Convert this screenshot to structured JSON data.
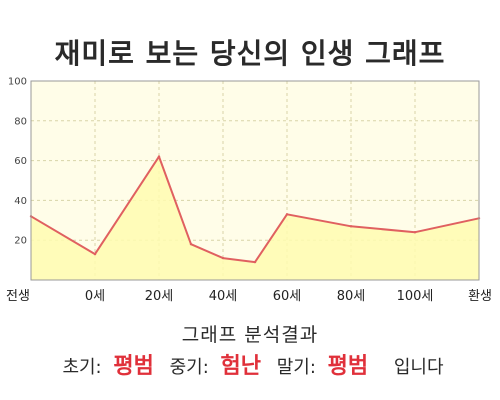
{
  "page": {
    "title": "재미로 보는 당신의 인생 그래프",
    "analysis_title": "그래프 분석결과",
    "results": [
      {
        "label": "초기:",
        "value": "평범"
      },
      {
        "label": "중기:",
        "value": "험난"
      },
      {
        "label": "말기:",
        "value": "평범"
      }
    ],
    "closing": "입니다"
  },
  "colors": {
    "line": "#e06060",
    "area_fill": "#fffbb0",
    "plot_bg": "#fffde8",
    "grid": "#d8d4a8",
    "highlight": "#e0303a"
  },
  "chart_data": {
    "type": "area",
    "title": "",
    "xlabel": "",
    "ylabel": "",
    "x_tick_labels": [
      "전생",
      "0세",
      "20세",
      "40세",
      "60세",
      "80세",
      "100세",
      "환생"
    ],
    "y_ticks": [
      20,
      40,
      60,
      80,
      100
    ],
    "ylim": [
      0,
      100
    ],
    "grid": true,
    "series": [
      {
        "points": [
          {
            "x": "전생",
            "y": 32
          },
          {
            "x": "0세",
            "y": 13
          },
          {
            "x": "20세",
            "y": 62
          },
          {
            "x": "30세",
            "y": 18
          },
          {
            "x": "40세",
            "y": 11
          },
          {
            "x": "50세",
            "y": 9
          },
          {
            "x": "60세",
            "y": 33
          },
          {
            "x": "80세",
            "y": 27
          },
          {
            "x": "100세",
            "y": 24
          },
          {
            "x": "환생",
            "y": 31
          }
        ]
      }
    ]
  }
}
